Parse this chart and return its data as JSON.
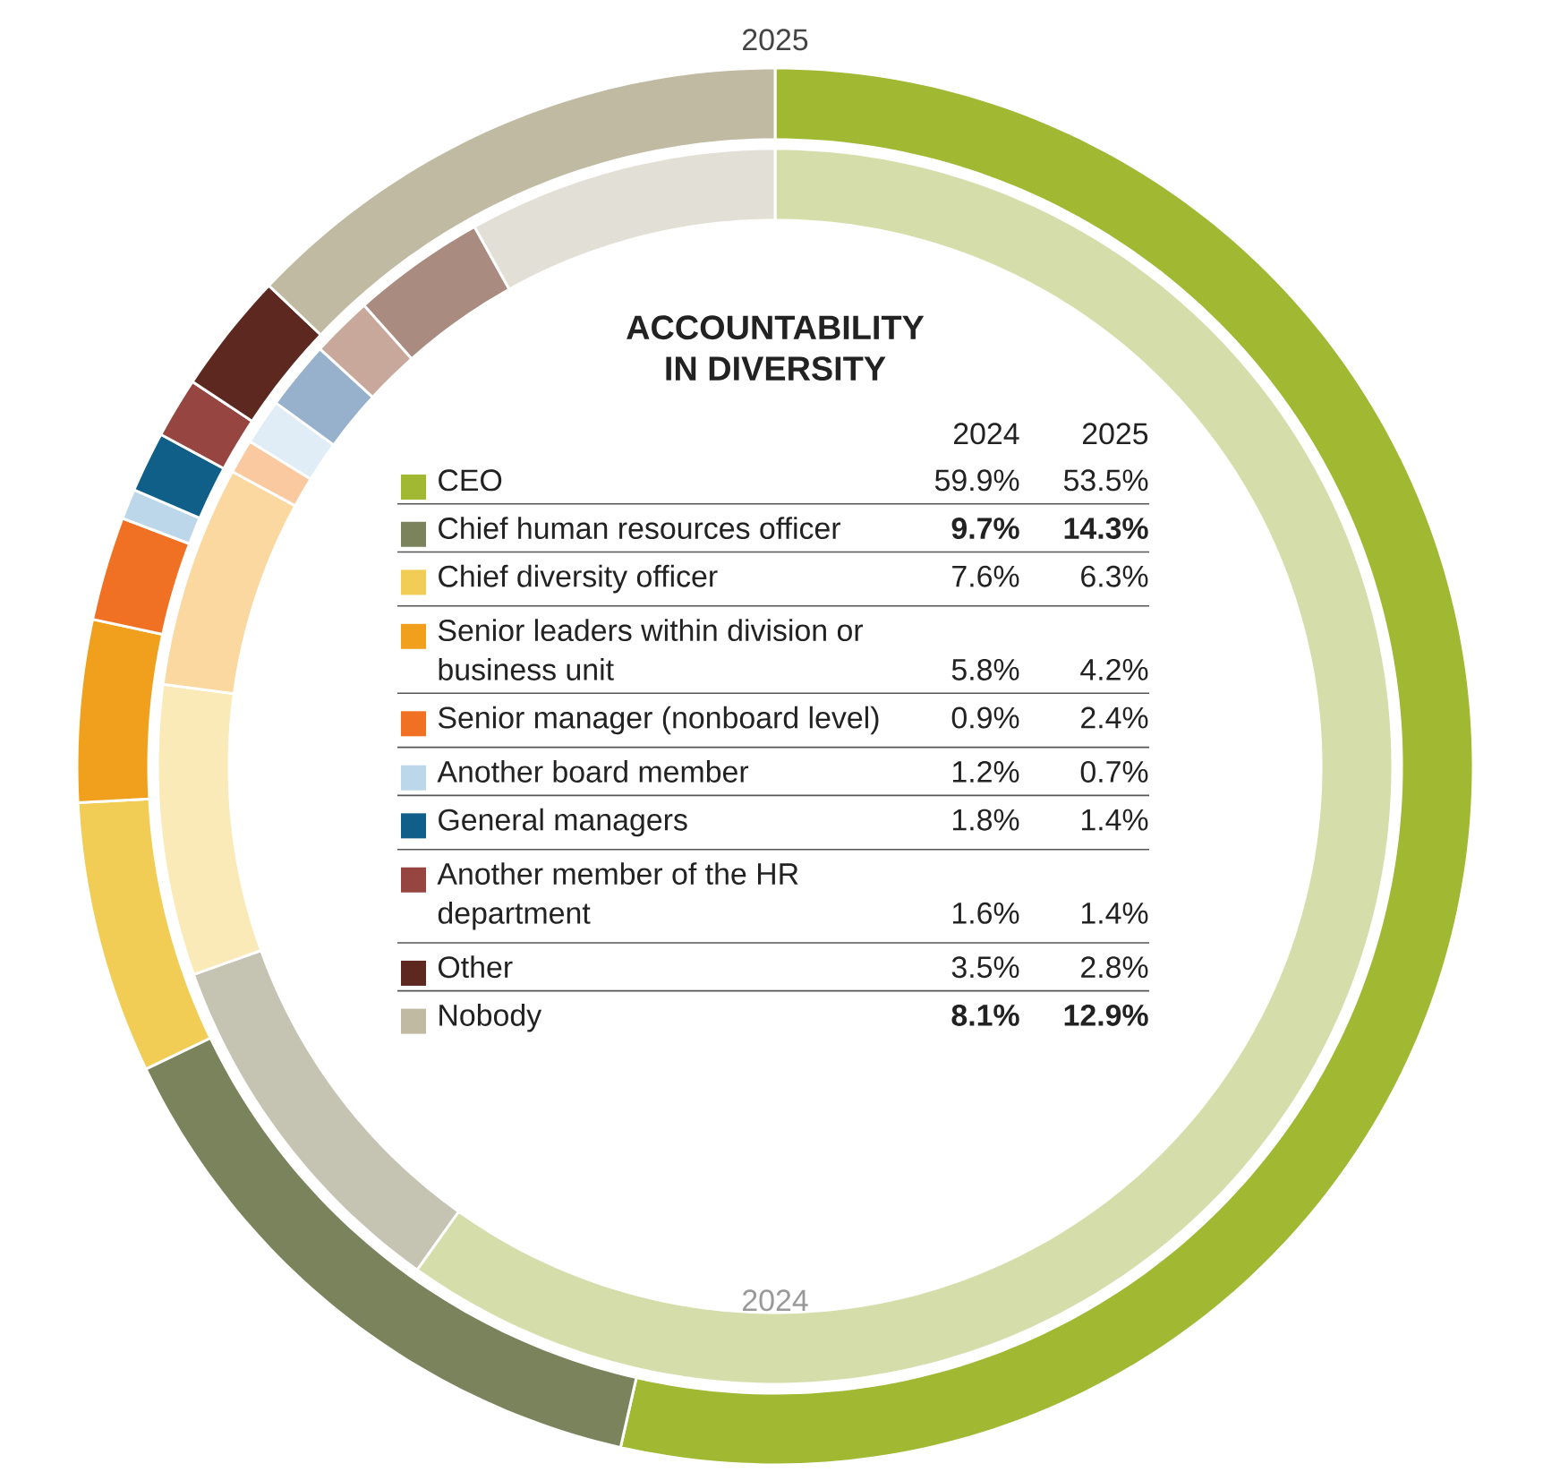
{
  "chart_data": {
    "type": "donut",
    "title": "ACCOUNTABILITY IN DIVERSITY",
    "legend": "center",
    "categories": [
      "CEO",
      "Chief human resources officer",
      "Chief diversity officer",
      "Senior leaders within division or business unit",
      "Senior manager (nonboard level)",
      "Another board member",
      "General managers",
      "Another member of the HR department",
      "Other",
      "Nobody"
    ],
    "series": [
      {
        "name": "2024",
        "colors": [
          "#d5deaa",
          "#c5c3b2",
          "#faeab8",
          "#fad8a0",
          "#fbc9a0",
          "#e0edf6",
          "#97b0cc",
          "#c9a89c",
          "#a98b80",
          "#e2e0d6"
        ],
        "values": [
          59.9,
          9.7,
          7.6,
          5.8,
          0.9,
          1.2,
          1.8,
          1.6,
          3.5,
          8.1
        ],
        "value_labels": [
          "59.9%",
          "**9.7%**",
          "7.6%",
          "5.8%",
          "0.9%",
          "1.2%",
          "1.8%",
          "1.6%",
          "3.5%",
          "**8.1%**"
        ]
      },
      {
        "name": "2025",
        "colors": [
          "#a0b832",
          "#7b835c",
          "#f2cd55",
          "#f0a01c",
          "#f07124",
          "#bcd6ea",
          "#0f5f88",
          "#964540",
          "#5c2820",
          "#c0baa2"
        ],
        "values": [
          53.5,
          14.3,
          6.3,
          4.2,
          2.4,
          0.7,
          1.4,
          1.4,
          2.8,
          12.9
        ],
        "value_labels": [
          "53.5%",
          "**14.3%**",
          "6.3%",
          "4.2%",
          "2.4%",
          "0.7%",
          "1.4%",
          "1.4%",
          "2.8%",
          "**12.9%**"
        ]
      }
    ]
  }
}
